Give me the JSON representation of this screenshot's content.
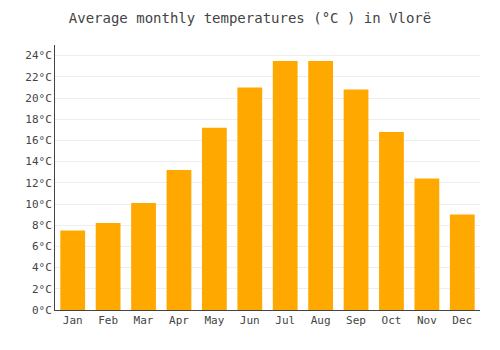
{
  "chart_data": {
    "type": "bar",
    "title": "Average monthly temperatures (°C ) in Vlorë",
    "categories": [
      "Jan",
      "Feb",
      "Mar",
      "Apr",
      "May",
      "Jun",
      "Jul",
      "Aug",
      "Sep",
      "Oct",
      "Nov",
      "Dec"
    ],
    "values": [
      7.5,
      8.2,
      10.1,
      13.2,
      17.2,
      21.0,
      23.5,
      23.5,
      20.8,
      16.8,
      12.4,
      9.0
    ],
    "color": "#FFA800",
    "ylim": [
      0,
      25
    ],
    "yticks": [
      {
        "value": 0,
        "label": "0°C"
      },
      {
        "value": 2,
        "label": "2°C"
      },
      {
        "value": 4,
        "label": "4°C"
      },
      {
        "value": 6,
        "label": "6°C"
      },
      {
        "value": 8,
        "label": "8°C"
      },
      {
        "value": 10,
        "label": "10°C"
      },
      {
        "value": 12,
        "label": "12°C"
      },
      {
        "value": 14,
        "label": "14°C"
      },
      {
        "value": 16,
        "label": "16°C"
      },
      {
        "value": 18,
        "label": "18°C"
      },
      {
        "value": 20,
        "label": "20°C"
      },
      {
        "value": 22,
        "label": "22°C"
      },
      {
        "value": 24,
        "label": "24°C"
      }
    ],
    "grid": true
  }
}
